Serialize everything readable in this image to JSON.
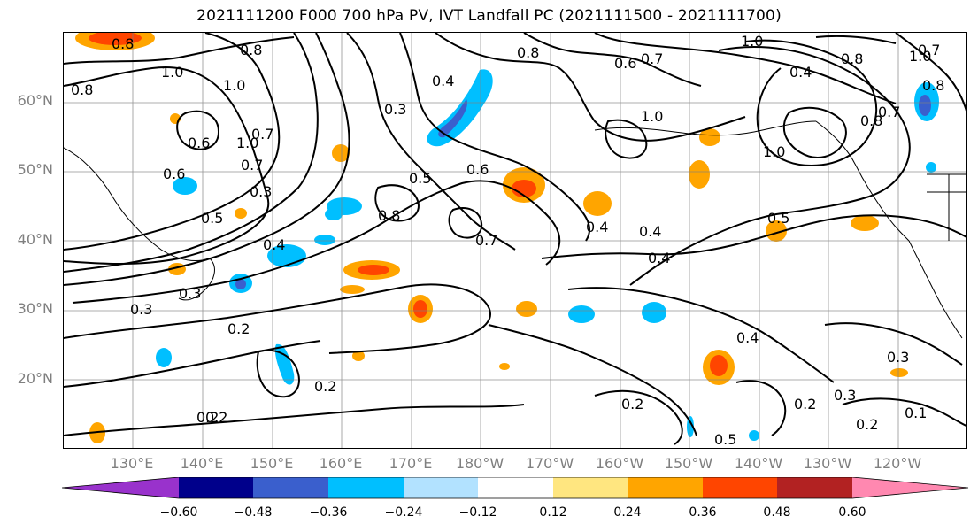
{
  "title": "2021111200 F000 700 hPa PV, IVT Landfall PC (2021111500 - 2021111700)",
  "lat_labels": [
    "60°N",
    "50°N",
    "40°N",
    "30°N",
    "20°N"
  ],
  "lon_labels": [
    "130°E",
    "140°E",
    "150°E",
    "160°E",
    "170°E",
    "180°W",
    "170°W",
    "160°W",
    "150°W",
    "140°W",
    "130°W",
    "120°W"
  ],
  "contour_labels": [
    "0.8",
    "1.0",
    "0.8",
    "1.0",
    "0.8",
    "0.7",
    "1.0",
    "0.6",
    "0.6",
    "0.7",
    "0.5",
    "0.3",
    "0.4",
    "0.3",
    "0.5",
    "0.6",
    "0.7",
    "0.8",
    "0.4",
    "0.3",
    "0.2",
    "0.2",
    "0.2",
    "0.3",
    "0.4",
    "0.6",
    "0.8",
    "0.7",
    "1.0",
    "1.0",
    "1.0",
    "0.8",
    "0.7",
    "0.4",
    "0.5",
    "0.4",
    "0.4",
    "0.4",
    "0.2",
    "0.3",
    "0.3",
    "0.2",
    "0.2",
    "0.1",
    "0.5",
    "0.8",
    "1.0",
    "0.8",
    "0.7",
    "0.2"
  ],
  "colorbar": {
    "ticks": [
      "−0.60",
      "−0.48",
      "−0.36",
      "−0.24",
      "−0.12",
      "0.12",
      "0.24",
      "0.36",
      "0.48",
      "0.60"
    ],
    "colors": [
      "#9932cc",
      "#00008b",
      "#3a5fcd",
      "#00bfff",
      "#b2e2ff",
      "#ffffff",
      "#ffe680",
      "#ffa500",
      "#ff4500",
      "#b22222",
      "#ff88b0"
    ]
  },
  "colors": {
    "contour": "#000000",
    "gridline": "#808080",
    "axis_label": "#7f7f7f"
  }
}
